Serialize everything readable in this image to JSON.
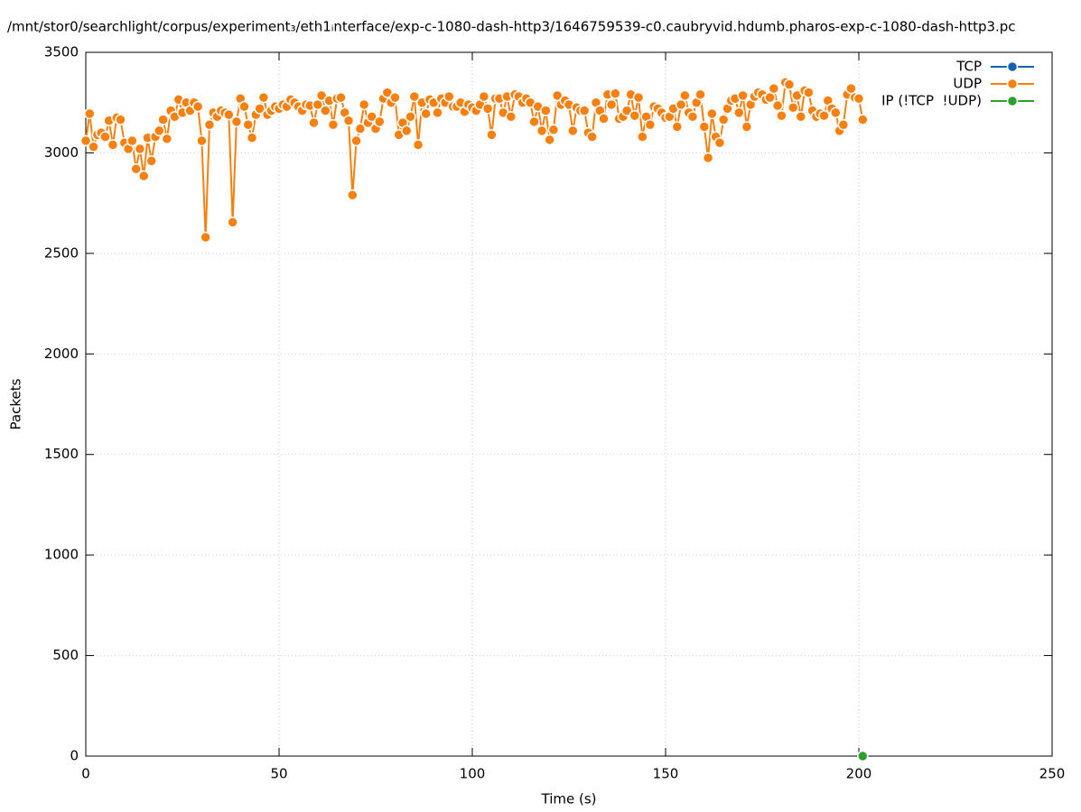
{
  "chart_data": {
    "type": "line",
    "title": "/mnt/stor0/searchlight/corpus/experiment₃/eth1ᵢnterface/exp-c-1080-dash-http3/1646759539-c0.caubryvid.hdumb.pharos-exp-c-1080-dash-http3.pc",
    "xlabel": "Time (s)",
    "ylabel": "Packets",
    "xlim": [
      0,
      250
    ],
    "xticks": [
      0,
      50,
      100,
      150,
      200,
      250
    ],
    "ylim": [
      0,
      3500
    ],
    "yticks": [
      0,
      500,
      1000,
      1500,
      2000,
      2500,
      3000,
      3500
    ],
    "grid": true,
    "legend": "top right",
    "series": [
      {
        "name": "TCP",
        "color": "#1561ad",
        "x": [],
        "values": []
      },
      {
        "name": "UDP",
        "color": "#f7800f",
        "x": [
          0,
          1,
          2,
          3,
          4,
          5,
          6,
          7,
          8,
          9,
          10,
          11,
          12,
          13,
          14,
          15,
          16,
          17,
          18,
          19,
          20,
          21,
          22,
          23,
          24,
          25,
          26,
          27,
          28,
          29,
          30,
          31,
          32,
          33,
          34,
          35,
          36,
          37,
          38,
          39,
          40,
          41,
          42,
          43,
          44,
          45,
          46,
          47,
          48,
          49,
          50,
          51,
          52,
          53,
          54,
          55,
          56,
          57,
          58,
          59,
          60,
          61,
          62,
          63,
          64,
          65,
          66,
          67,
          68,
          69,
          70,
          71,
          72,
          73,
          74,
          75,
          76,
          77,
          78,
          79,
          80,
          81,
          82,
          83,
          84,
          85,
          86,
          87,
          88,
          89,
          90,
          91,
          92,
          93,
          94,
          95,
          96,
          97,
          98,
          99,
          100,
          101,
          102,
          103,
          104,
          105,
          106,
          107,
          108,
          109,
          110,
          111,
          112,
          113,
          114,
          115,
          116,
          117,
          118,
          119,
          120,
          121,
          122,
          123,
          124,
          125,
          126,
          127,
          128,
          129,
          130,
          131,
          132,
          133,
          134,
          135,
          136,
          137,
          138,
          139,
          140,
          141,
          142,
          143,
          144,
          145,
          146,
          147,
          148,
          149,
          150,
          151,
          152,
          153,
          154,
          155,
          156,
          157,
          158,
          159,
          160,
          161,
          162,
          163,
          164,
          165,
          166,
          167,
          168,
          169,
          170,
          171,
          172,
          173,
          174,
          175,
          176,
          177,
          178,
          179,
          180,
          181,
          182,
          183,
          184,
          185,
          186,
          187,
          188,
          189,
          190,
          191,
          192,
          193,
          194,
          195,
          196,
          197,
          198,
          199,
          200,
          201
        ],
        "values": [
          3060,
          3195,
          3030,
          3090,
          3100,
          3080,
          3160,
          3040,
          3175,
          3165,
          3050,
          3020,
          3060,
          2920,
          3020,
          2885,
          3075,
          2960,
          3080,
          3110,
          3165,
          3070,
          3210,
          3180,
          3265,
          3200,
          3250,
          3210,
          3250,
          3230,
          3060,
          2580,
          3140,
          3200,
          3180,
          3210,
          3200,
          3190,
          2655,
          3155,
          3270,
          3230,
          3140,
          3075,
          3190,
          3220,
          3275,
          3190,
          3210,
          3230,
          3220,
          3240,
          3230,
          3265,
          3250,
          3230,
          3210,
          3240,
          3235,
          3150,
          3240,
          3285,
          3210,
          3260,
          3140,
          3270,
          3275,
          3200,
          3160,
          2790,
          3060,
          3120,
          3240,
          3150,
          3180,
          3120,
          3155,
          3270,
          3300,
          3250,
          3275,
          3090,
          3150,
          3110,
          3180,
          3280,
          3040,
          3250,
          3195,
          3265,
          3250,
          3200,
          3270,
          3250,
          3280,
          3230,
          3230,
          3250,
          3205,
          3240,
          3225,
          3210,
          3240,
          3280,
          3220,
          3090,
          3270,
          3270,
          3200,
          3280,
          3180,
          3290,
          3280,
          3250,
          3270,
          3250,
          3155,
          3230,
          3110,
          3210,
          3065,
          3115,
          3285,
          3240,
          3260,
          3240,
          3110,
          3225,
          3210,
          3210,
          3100,
          3080,
          3250,
          3210,
          3170,
          3290,
          3240,
          3295,
          3170,
          3180,
          3210,
          3290,
          3185,
          3275,
          3080,
          3180,
          3140,
          3230,
          3220,
          3200,
          3175,
          3180,
          3220,
          3130,
          3240,
          3285,
          3200,
          3180,
          3250,
          3290,
          3130,
          2975,
          3195,
          3080,
          3050,
          3165,
          3220,
          3260,
          3270,
          3200,
          3285,
          3130,
          3240,
          3280,
          3300,
          3290,
          3265,
          3275,
          3320,
          3235,
          3185,
          3350,
          3340,
          3225,
          3285,
          3180,
          3310,
          3300,
          3210,
          3180,
          3195,
          3185,
          3260,
          3220,
          3200,
          3110,
          3140,
          3290,
          3320,
          3275,
          3270,
          3165
        ]
      },
      {
        "name": "IP (!TCP  !UDP)",
        "color": "#2ca02c",
        "x": [
          201
        ],
        "values": [
          0
        ]
      }
    ]
  }
}
